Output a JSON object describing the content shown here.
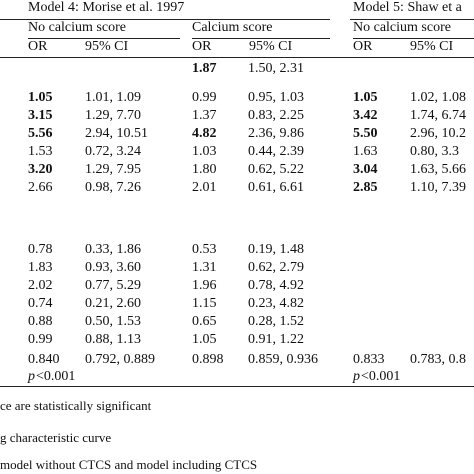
{
  "header": {
    "models": [
      "Model 4: Morise et al. 1997",
      "Model 5: Shaw et a"
    ],
    "groups": [
      "No calcium score",
      "Calcium score",
      "No calcium score"
    ],
    "columns": [
      "OR",
      "95% CI"
    ]
  },
  "rows": [
    [
      null,
      {
        "or": "1.87",
        "ci": "1.50, 2.31",
        "bold": true
      },
      null
    ],
    [
      {
        "or": "1.05",
        "ci": "1.01, 1.09",
        "bold": true
      },
      {
        "or": "0.99",
        "ci": "0.95, 1.03",
        "bold": false
      },
      {
        "or": "1.05",
        "ci": "1.02, 1.08",
        "bold": true
      }
    ],
    [
      {
        "or": "3.15",
        "ci": "1.29, 7.70",
        "bold": true
      },
      {
        "or": "1.37",
        "ci": "0.83, 2.25",
        "bold": false
      },
      {
        "or": "3.42",
        "ci": "1.74, 6.74",
        "bold": true
      }
    ],
    [
      {
        "or": "5.56",
        "ci": "2.94, 10.51",
        "bold": true
      },
      {
        "or": "4.82",
        "ci": "2.36, 9.86",
        "bold": true
      },
      {
        "or": "5.50",
        "ci": "2.96, 10.2",
        "bold": true
      }
    ],
    [
      {
        "or": "1.53",
        "ci": "0.72, 3.24",
        "bold": false
      },
      {
        "or": "1.03",
        "ci": "0.44, 2.39",
        "bold": false
      },
      {
        "or": "1.63",
        "ci": "0.80, 3.3",
        "bold": false
      }
    ],
    [
      {
        "or": "3.20",
        "ci": "1.29, 7.95",
        "bold": true
      },
      {
        "or": "1.80",
        "ci": "0.62, 5.22",
        "bold": false
      },
      {
        "or": "3.04",
        "ci": "1.63, 5.66",
        "bold": true
      }
    ],
    [
      {
        "or": "2.66",
        "ci": "0.98, 7.26",
        "bold": false
      },
      {
        "or": "2.01",
        "ci": "0.61, 6.61",
        "bold": false
      },
      {
        "or": "2.85",
        "ci": "1.10, 7.39",
        "bold": true
      }
    ],
    [
      {
        "or": "0.78",
        "ci": "0.33, 1.86",
        "bold": false
      },
      {
        "or": "0.53",
        "ci": "0.19, 1.48",
        "bold": false
      },
      null
    ],
    [
      {
        "or": "1.83",
        "ci": "0.93, 3.60",
        "bold": false
      },
      {
        "or": "1.31",
        "ci": "0.62, 2.79",
        "bold": false
      },
      null
    ],
    [
      {
        "or": "2.02",
        "ci": "0.77, 5.29",
        "bold": false
      },
      {
        "or": "1.96",
        "ci": "0.78, 4.92",
        "bold": false
      },
      null
    ],
    [
      {
        "or": "0.74",
        "ci": "0.21, 2.60",
        "bold": false
      },
      {
        "or": "1.15",
        "ci": "0.23, 4.82",
        "bold": false
      },
      null
    ],
    [
      {
        "or": "0.88",
        "ci": "0.50, 1.53",
        "bold": false
      },
      {
        "or": "0.65",
        "ci": "0.28, 1.52",
        "bold": false
      },
      null
    ],
    [
      {
        "or": "0.99",
        "ci": "0.88, 1.13",
        "bold": false
      },
      {
        "or": "1.05",
        "ci": "0.91, 1.22",
        "bold": false
      },
      null
    ],
    [
      {
        "or": "0.840",
        "ci": "0.792, 0.889",
        "bold": false
      },
      {
        "or": "0.898",
        "ci": "0.859, 0.936",
        "bold": false
      },
      {
        "or": "0.833",
        "ci": "0.783, 0.8",
        "bold": false
      }
    ]
  ],
  "pvalues": [
    {
      "p": "p",
      "value": "<0.001"
    },
    {
      "p": "p",
      "value": "<0.001"
    }
  ],
  "footnotes": [
    "ce are statistically significant",
    "g characteristic curve",
    "model without CTCS and model including CTCS"
  ]
}
